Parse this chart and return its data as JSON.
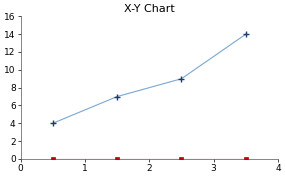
{
  "title": "X-Y Chart",
  "blue_x": [
    0.5,
    1.5,
    2.5,
    3.5
  ],
  "blue_y": [
    4,
    7,
    9,
    14
  ],
  "red_x": [
    0.5,
    1.5,
    2.5,
    3.5
  ],
  "red_y": [
    0,
    0,
    0,
    0
  ],
  "xlim": [
    0,
    4
  ],
  "ylim": [
    0,
    16
  ],
  "xticks": [
    0,
    1,
    2,
    3,
    4
  ],
  "yticks": [
    0,
    2,
    4,
    6,
    8,
    10,
    12,
    14,
    16
  ],
  "blue_line_color": "#7BA7D0",
  "blue_marker_color": "#1F3B6E",
  "red_color": "#C00000",
  "bg_color": "#FFFFFF",
  "title_fontsize": 8,
  "tick_fontsize": 6.5
}
